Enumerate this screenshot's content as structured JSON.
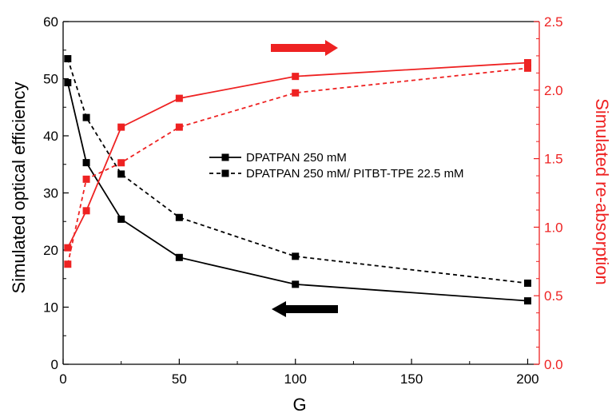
{
  "chart_data": {
    "type": "line",
    "xlabel": "G",
    "ylabel_left": "Simulated optical efficiency",
    "ylabel_right": "Simulated re-absorption",
    "xlim": [
      0,
      205
    ],
    "ylim_left": [
      0,
      60
    ],
    "ylim_right": [
      0,
      2.5
    ],
    "x_ticks": [
      0,
      50,
      100,
      150,
      200
    ],
    "y_left_ticks": [
      0,
      10,
      20,
      30,
      40,
      50,
      60
    ],
    "y_right_ticks": [
      0.0,
      0.5,
      1.0,
      1.5,
      2.0,
      2.5
    ],
    "x_tick_labels": [
      "0",
      "50",
      "100",
      "150",
      "200"
    ],
    "y_left_tick_labels": [
      "0",
      "10",
      "20",
      "30",
      "40",
      "50",
      "60"
    ],
    "y_right_tick_labels": [
      "0.0",
      "0.5",
      "1.0",
      "1.5",
      "2.0",
      "2.5"
    ],
    "grid": false,
    "legend_position": "center",
    "series": [
      {
        "name": "DPATPAN 250 mM",
        "axis": "left",
        "style": "solid",
        "color": "#000000",
        "show_in_legend": true,
        "x": [
          2,
          10,
          25,
          50,
          100,
          200
        ],
        "y": [
          49.3,
          35.3,
          25.4,
          18.7,
          14.0,
          11.1
        ]
      },
      {
        "name": "DPATPAN 250 mM/ PITBT-TPE 22.5 mM",
        "axis": "left",
        "style": "dashed",
        "color": "#000000",
        "show_in_legend": true,
        "x": [
          2,
          10,
          25,
          50,
          100,
          200
        ],
        "y": [
          53.5,
          43.2,
          33.3,
          25.7,
          18.9,
          14.2
        ]
      },
      {
        "axis": "right",
        "style": "solid",
        "color": "#ee2222",
        "show_in_legend": false,
        "x": [
          2,
          10,
          25,
          50,
          100,
          200
        ],
        "y": [
          0.85,
          1.12,
          1.73,
          1.94,
          2.1,
          2.2
        ]
      },
      {
        "axis": "right",
        "style": "dashed",
        "color": "#ee2222",
        "show_in_legend": false,
        "x": [
          2,
          10,
          25,
          50,
          100,
          200
        ],
        "y": [
          0.73,
          1.35,
          1.47,
          1.73,
          1.98,
          2.16
        ]
      }
    ],
    "annotations": [
      {
        "type": "arrow",
        "direction": "right",
        "color": "#ee2222",
        "meaning": "red curves use right axis"
      },
      {
        "type": "arrow",
        "direction": "left",
        "color": "#000000",
        "meaning": "black curves use left axis"
      }
    ]
  }
}
